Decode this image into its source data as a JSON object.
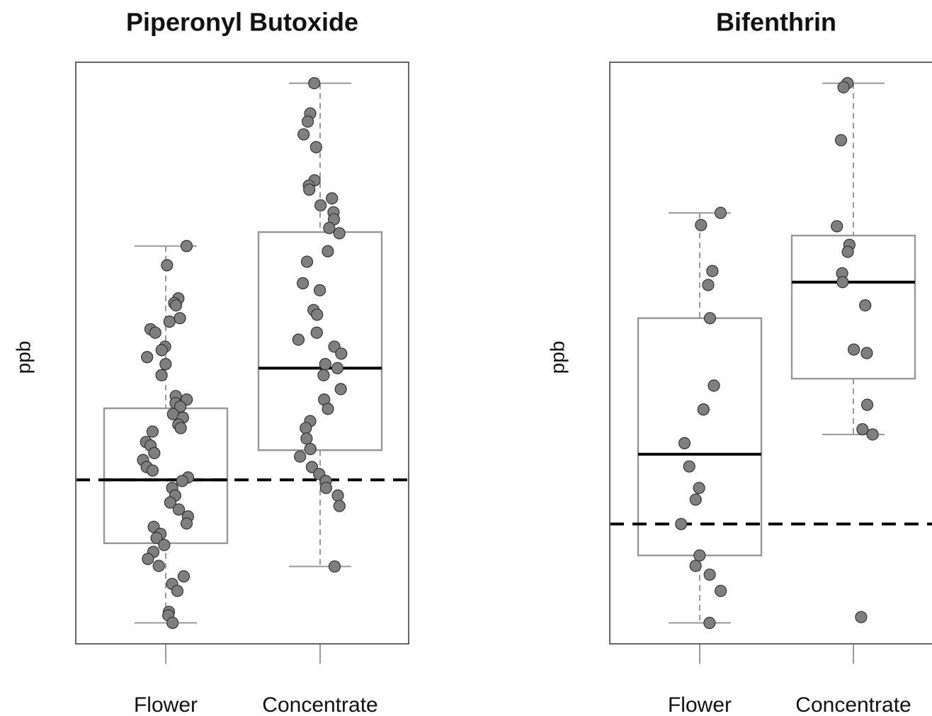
{
  "chart_data": [
    {
      "type": "box",
      "title": "Piperonyl Butoxide",
      "ylabel": "ppb",
      "categories": [
        "Flower",
        "Concentrate"
      ],
      "ylim": [
        0,
        100
      ],
      "threshold": 28.2,
      "box_color": "#999999",
      "point_color": "#7f7f7f",
      "boxes": [
        {
          "whisker_low": 3.6,
          "q1": 17.3,
          "median": 28.2,
          "q3": 40.5,
          "whisker_high": 68.4
        },
        {
          "whisker_low": 13.3,
          "q1": 33.3,
          "median": 47.4,
          "q3": 70.8,
          "whisker_high": 96.4
        }
      ],
      "points": [
        [
          68.4,
          65.1,
          59.4,
          58.6,
          58.2,
          56.0,
          55.4,
          54.1,
          53.5,
          51.1,
          50.5,
          49.3,
          48.1,
          46.2,
          42.6,
          42.0,
          41.4,
          40.8,
          39.5,
          38.9,
          37.7,
          37.1,
          36.5,
          34.7,
          34.1,
          32.8,
          31.6,
          30.4,
          29.8,
          28.6,
          28.0,
          26.8,
          25.5,
          24.3,
          23.1,
          21.9,
          20.7,
          20.1,
          18.9,
          18.2,
          17.0,
          15.8,
          14.6,
          13.4,
          11.6,
          10.3,
          9.1,
          5.5,
          4.9,
          3.6
        ],
        [
          96.4,
          91.2,
          89.8,
          87.6,
          85.4,
          79.7,
          78.8,
          78.1,
          76.6,
          75.4,
          74.2,
          73.0,
          71.5,
          70.6,
          67.5,
          65.7,
          62.0,
          60.8,
          57.4,
          56.6,
          53.5,
          52.3,
          51.1,
          49.9,
          48.1,
          47.4,
          46.2,
          43.8,
          42.0,
          40.4,
          38.3,
          37.1,
          35.3,
          33.5,
          32.2,
          30.4,
          29.2,
          28.0,
          26.8,
          25.5,
          23.7,
          13.3
        ]
      ]
    },
    {
      "type": "box",
      "title": "Bifenthrin",
      "ylabel": "ppb",
      "categories": [
        "Flower",
        "Concentrate"
      ],
      "ylim": [
        0,
        100
      ],
      "threshold": 20.6,
      "box_color": "#999999",
      "point_color": "#7f7f7f",
      "boxes": [
        {
          "whisker_low": 3.6,
          "q1": 15.2,
          "median": 32.6,
          "q3": 56.0,
          "whisker_high": 74.1
        },
        {
          "whisker_low": 36.0,
          "q1": 45.6,
          "median": 62.2,
          "q3": 70.2,
          "whisker_high": 96.4
        }
      ],
      "points": [
        [
          74.1,
          72.0,
          64.1,
          61.7,
          56.0,
          44.4,
          40.3,
          34.5,
          30.5,
          26.8,
          24.8,
          20.6,
          15.2,
          13.4,
          11.9,
          9.1,
          3.6
        ],
        [
          96.4,
          95.7,
          86.6,
          71.8,
          68.6,
          67.4,
          63.7,
          62.2,
          58.2,
          50.6,
          50.0,
          41.1,
          36.9,
          36.0,
          4.6
        ]
      ]
    }
  ]
}
